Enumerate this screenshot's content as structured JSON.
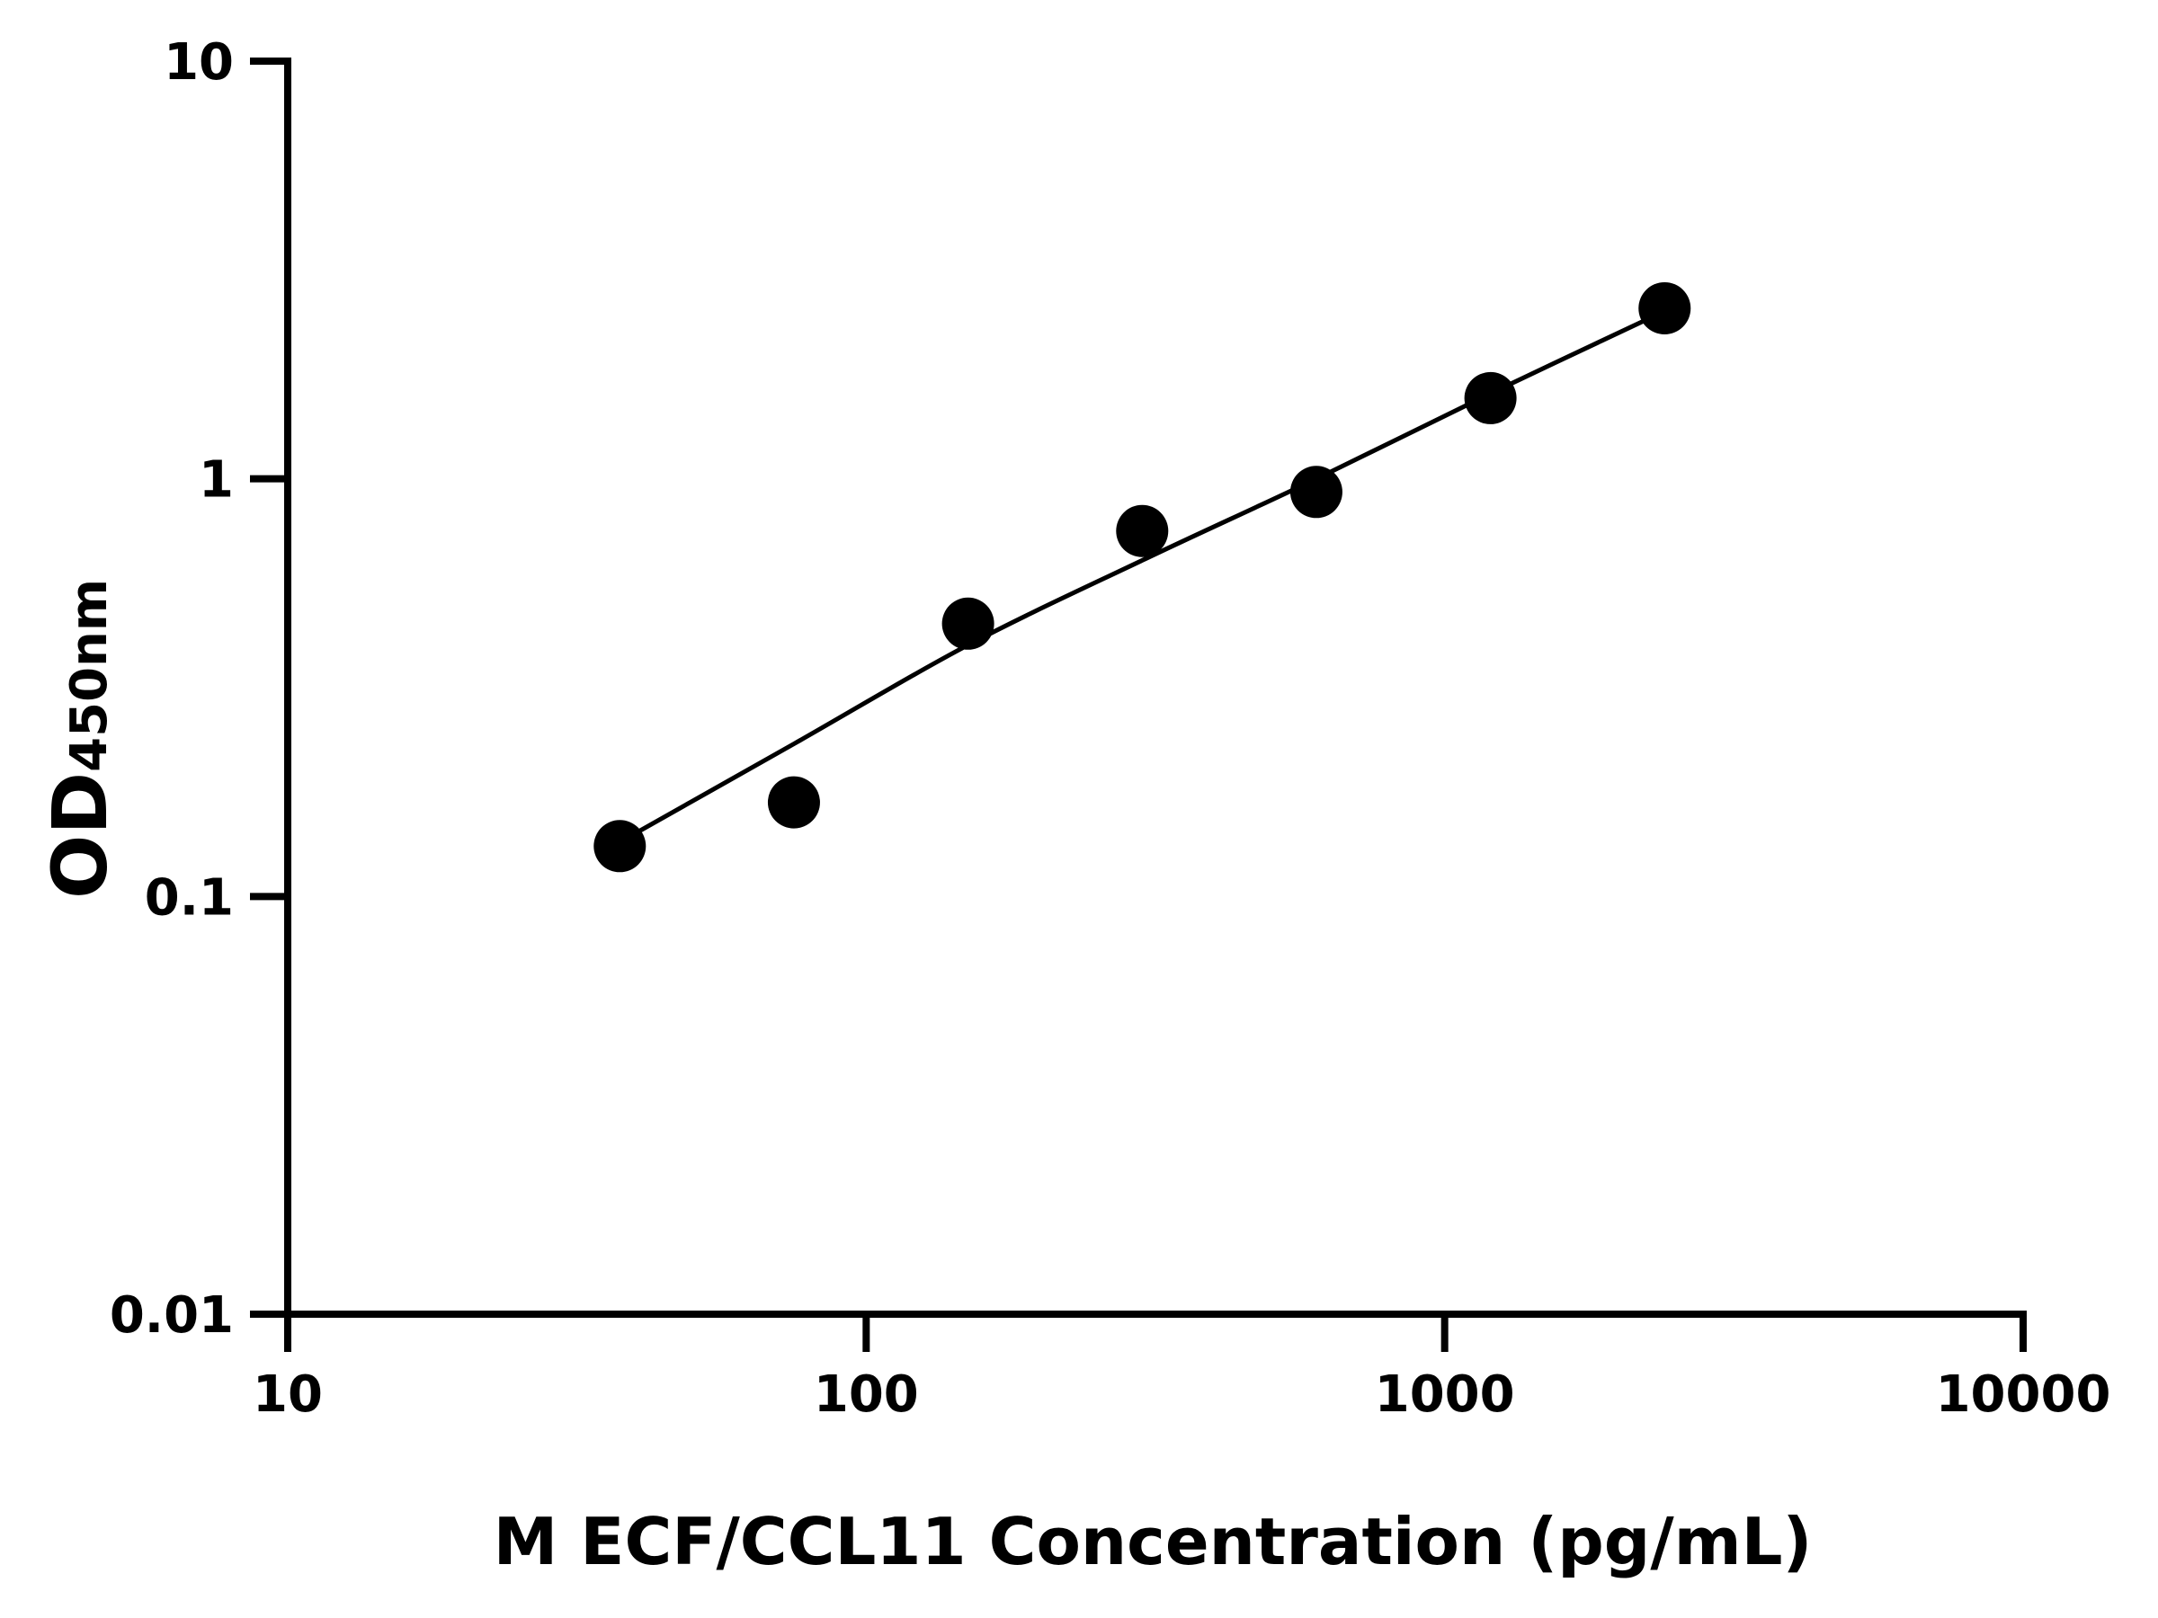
{
  "chart_data": {
    "type": "scatter",
    "xlabel": "M ECF/CCL11 Concentration (pg/mL)",
    "ylabel_main": "OD",
    "ylabel_sub": "450nm",
    "xscale": "log",
    "yscale": "log",
    "xlim": [
      10,
      10000
    ],
    "ylim": [
      0.01,
      10
    ],
    "xticks": [
      10,
      100,
      1000,
      10000
    ],
    "xtick_labels": [
      "10",
      "100",
      "1000",
      "10000"
    ],
    "yticks": [
      0.01,
      0.1,
      1,
      10
    ],
    "ytick_labels": [
      "0.01",
      "0.1",
      "1",
      "10"
    ],
    "grid": false,
    "legend": "none",
    "colors": {
      "points": "#000000",
      "curve": "#000000",
      "axes": "#000000"
    },
    "series": [
      {
        "points": [
          {
            "x": 37.5,
            "y": 0.132
          },
          {
            "x": 75,
            "y": 0.168
          },
          {
            "x": 150,
            "y": 0.45
          },
          {
            "x": 300,
            "y": 0.75
          },
          {
            "x": 600,
            "y": 0.93
          },
          {
            "x": 1200,
            "y": 1.56
          },
          {
            "x": 2400,
            "y": 2.56
          }
        ],
        "fit_curve": [
          {
            "x": 37.5,
            "y": 0.135
          },
          {
            "x": 75,
            "y": 0.232
          },
          {
            "x": 150,
            "y": 0.4
          },
          {
            "x": 300,
            "y": 0.638
          },
          {
            "x": 600,
            "y": 1.0
          },
          {
            "x": 1200,
            "y": 1.6
          },
          {
            "x": 2400,
            "y": 2.52
          }
        ]
      }
    ]
  }
}
